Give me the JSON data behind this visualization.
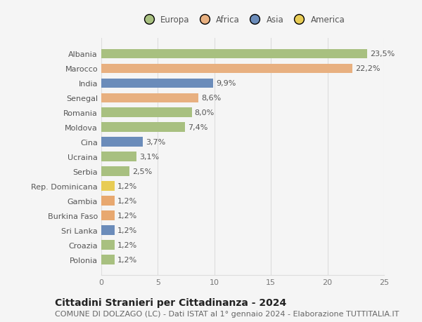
{
  "countries": [
    "Albania",
    "Marocco",
    "India",
    "Senegal",
    "Romania",
    "Moldova",
    "Cina",
    "Ucraina",
    "Serbia",
    "Rep. Dominicana",
    "Gambia",
    "Burkina Faso",
    "Sri Lanka",
    "Croazia",
    "Polonia"
  ],
  "values": [
    23.5,
    22.2,
    9.9,
    8.6,
    8.0,
    7.4,
    3.7,
    3.1,
    2.5,
    1.2,
    1.2,
    1.2,
    1.2,
    1.2,
    1.2
  ],
  "labels": [
    "23,5%",
    "22,2%",
    "9,9%",
    "8,6%",
    "8,0%",
    "7,4%",
    "3,7%",
    "3,1%",
    "2,5%",
    "1,2%",
    "1,2%",
    "1,2%",
    "1,2%",
    "1,2%",
    "1,2%"
  ],
  "colors": [
    "#a8c080",
    "#e8b080",
    "#6b8cba",
    "#e8b080",
    "#a8c080",
    "#a8c080",
    "#6b8cba",
    "#a8c080",
    "#a8c080",
    "#e8cc55",
    "#e8a870",
    "#e8a870",
    "#6b8cba",
    "#a8c080",
    "#a8c080"
  ],
  "legend_labels": [
    "Europa",
    "Africa",
    "Asia",
    "America"
  ],
  "legend_colors": [
    "#a8c080",
    "#e8b080",
    "#6b8cba",
    "#e8cc55"
  ],
  "xlim": [
    0,
    25
  ],
  "xticks": [
    0,
    5,
    10,
    15,
    20,
    25
  ],
  "title": "Cittadini Stranieri per Cittadinanza - 2024",
  "subtitle": "COMUNE DI DOLZAGO (LC) - Dati ISTAT al 1° gennaio 2024 - Elaborazione TUTTITALIA.IT",
  "background_color": "#f5f5f5",
  "plot_bg_color": "#f5f5f5",
  "grid_color": "#dddddd",
  "bar_height": 0.65,
  "title_fontsize": 10,
  "subtitle_fontsize": 8,
  "label_fontsize": 8,
  "tick_fontsize": 8,
  "legend_fontsize": 8.5
}
